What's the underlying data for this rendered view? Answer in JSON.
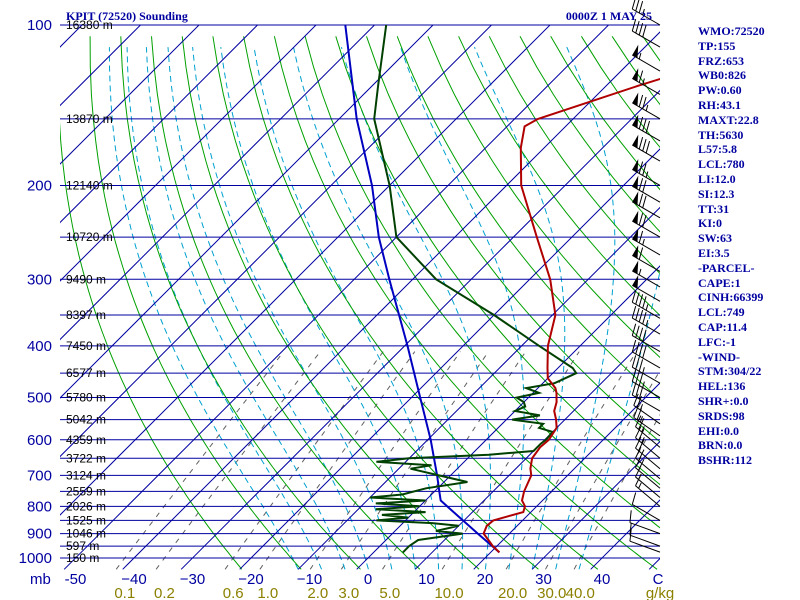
{
  "header": {
    "station": "KPIT (72520) Sounding",
    "time": "0000Z  1 MAY 25"
  },
  "indices": [
    "WMO:72520",
    "TP:155",
    "FRZ:653",
    "WB0:826",
    "PW:0.60",
    "RH:43.1",
    "MAXT:22.8",
    "TH:5630",
    "L57:5.8",
    "LCL:780",
    "LI:12.0",
    "SI:12.3",
    "TT:31",
    "KI:0",
    "SW:63",
    "EI:3.5",
    "-PARCEL-",
    "CAPE:1",
    "CINH:66399",
    "LCL:749",
    "CAP:11.4",
    "LFC:-1",
    "-WIND-",
    "STM:304/22",
    "HEL:136",
    "SHR+:0.0",
    "SRDS:98",
    "EHI:0.0",
    "BRN:0.0",
    "BSHR:112"
  ],
  "colors": {
    "isobar": "#0000a0",
    "isotherm": "#0000a0",
    "dry_adiabat": "#00a000",
    "moist_adiabat": "#00a0d0",
    "mixing_ratio": "#606060",
    "temperature": "#b00000",
    "dewpoint": "#004000",
    "parcel": "#0000c0",
    "wind_barb": "#000000"
  },
  "chart_data": {
    "type": "skew-t",
    "title": "KPIT (72520) Sounding",
    "pressure_unit_label": "mb",
    "mixing_ratio_unit_label": "g/kg",
    "pressure_ticks": [
      100,
      200,
      300,
      400,
      500,
      600,
      700,
      800,
      900,
      1000
    ],
    "temperature_ticks": [
      -50,
      -40,
      -30,
      -20,
      -10,
      0,
      10,
      20,
      30,
      40
    ],
    "temperature_tick_labels": [
      "-50",
      "−40",
      "−30",
      "−20",
      "−10",
      "0",
      "10",
      "20",
      "30",
      "40"
    ],
    "axis_end_label": "C",
    "mixing_ratio_labels": [
      "0.1",
      "0.2",
      "0.6",
      "1.0",
      "2.0",
      "3.0",
      "5.0",
      "10.0",
      "20.0",
      "30.0",
      "40.0"
    ],
    "mixing_ratio_values": [
      0.1,
      0.2,
      0.6,
      1.0,
      2.0,
      3.0,
      5.0,
      10.0,
      20.0,
      30.0,
      40.0
    ],
    "height_labels": [
      {
        "p": 100,
        "label": "16380 m"
      },
      {
        "p": 150,
        "label": "13870 m"
      },
      {
        "p": 200,
        "label": "12140 m"
      },
      {
        "p": 250,
        "label": "10720 m"
      },
      {
        "p": 300,
        "label": "9490 m"
      },
      {
        "p": 350,
        "label": "8397 m"
      },
      {
        "p": 400,
        "label": "7450 m"
      },
      {
        "p": 450,
        "label": "6577 m"
      },
      {
        "p": 500,
        "label": "5780 m"
      },
      {
        "p": 550,
        "label": "5042 m"
      },
      {
        "p": 600,
        "label": "4359 m"
      },
      {
        "p": 650,
        "label": "3722 m"
      },
      {
        "p": 700,
        "label": "3124 m"
      },
      {
        "p": 750,
        "label": "2559 m"
      },
      {
        "p": 800,
        "label": "2026 m"
      },
      {
        "p": 850,
        "label": "1525 m"
      },
      {
        "p": 900,
        "label": "1046 m"
      },
      {
        "p": 950,
        "label": "597 m"
      },
      {
        "p": 1000,
        "label": "150 m"
      }
    ],
    "temperature_profile": [
      [
        976,
        21.5
      ],
      [
        950,
        19.3
      ],
      [
        925,
        17.5
      ],
      [
        900,
        15.6
      ],
      [
        870,
        14.8
      ],
      [
        850,
        15.0
      ],
      [
        835,
        16.8
      ],
      [
        820,
        18.7
      ],
      [
        800,
        18.0
      ],
      [
        780,
        16.5
      ],
      [
        750,
        15.3
      ],
      [
        700,
        13.8
      ],
      [
        680,
        12.5
      ],
      [
        650,
        11.0
      ],
      [
        620,
        10.5
      ],
      [
        600,
        10.7
      ],
      [
        570,
        10.0
      ],
      [
        550,
        8.5
      ],
      [
        530,
        6.7
      ],
      [
        510,
        5.6
      ],
      [
        500,
        4.8
      ],
      [
        490,
        4.0
      ],
      [
        480,
        3.0
      ],
      [
        460,
        0.0
      ],
      [
        440,
        -1.8
      ],
      [
        400,
        -5.5
      ],
      [
        350,
        -9.5
      ],
      [
        300,
        -16.5
      ],
      [
        250,
        -26.0
      ],
      [
        200,
        -37.5
      ],
      [
        170,
        -44.0
      ],
      [
        155,
        -47.0
      ],
      [
        150,
        -46.0
      ],
      [
        130,
        -34.5
      ],
      [
        118,
        -26.0
      ],
      [
        100,
        -12.0
      ]
    ],
    "dewpoint_profile": [
      [
        976,
        5.0
      ],
      [
        950,
        5.0
      ],
      [
        925,
        5.5
      ],
      [
        900,
        12.0
      ],
      [
        890,
        7.0
      ],
      [
        870,
        10.0
      ],
      [
        860,
        5.0
      ],
      [
        850,
        -5.0
      ],
      [
        840,
        0.0
      ],
      [
        830,
        -5.0
      ],
      [
        820,
        2.0
      ],
      [
        810,
        -7.0
      ],
      [
        800,
        0.0
      ],
      [
        790,
        -8.0
      ],
      [
        780,
        0.0
      ],
      [
        770,
        -10.0
      ],
      [
        760,
        -5.0
      ],
      [
        740,
        -2.0
      ],
      [
        720,
        4.0
      ],
      [
        700,
        -2.0
      ],
      [
        680,
        -8.0
      ],
      [
        670,
        -5.0
      ],
      [
        660,
        -15.0
      ],
      [
        650,
        -10.0
      ],
      [
        640,
        3.0
      ],
      [
        630,
        10.0
      ],
      [
        610,
        10.0
      ],
      [
        600,
        10.2
      ],
      [
        580,
        10.0
      ],
      [
        570,
        7.0
      ],
      [
        560,
        7.0
      ],
      [
        550,
        1.0
      ],
      [
        540,
        5.0
      ],
      [
        530,
        0.0
      ],
      [
        520,
        1.0
      ],
      [
        510,
        0.0
      ],
      [
        500,
        -2.0
      ],
      [
        490,
        1.0
      ],
      [
        480,
        -2.0
      ],
      [
        470,
        2.0
      ],
      [
        460,
        3.0
      ],
      [
        450,
        4.0
      ],
      [
        440,
        2.5
      ],
      [
        400,
        -7.0
      ],
      [
        350,
        -20.0
      ],
      [
        300,
        -36.0
      ],
      [
        250,
        -50.0
      ],
      [
        200,
        -60.0
      ],
      [
        150,
        -74.0
      ],
      [
        130,
        -79.0
      ],
      [
        100,
        -88.0
      ]
    ],
    "parcel_profile": [
      [
        976,
        21.5
      ],
      [
        900,
        14.6
      ],
      [
        850,
        9.8
      ],
      [
        800,
        4.7
      ],
      [
        780,
        2.6
      ],
      [
        750,
        0.8
      ],
      [
        700,
        -2.3
      ],
      [
        600,
        -9.5
      ],
      [
        500,
        -18.5
      ],
      [
        400,
        -29.5
      ],
      [
        300,
        -44.0
      ],
      [
        250,
        -53.0
      ],
      [
        200,
        -63.0
      ],
      [
        150,
        -77.0
      ],
      [
        100,
        -95.0
      ]
    ],
    "wind_barbs": [
      {
        "p": 100,
        "dir": 300,
        "kt": 35
      },
      {
        "p": 110,
        "dir": 300,
        "kt": 40
      },
      {
        "p": 122,
        "dir": 300,
        "kt": 55
      },
      {
        "p": 135,
        "dir": 300,
        "kt": 65
      },
      {
        "p": 150,
        "dir": 300,
        "kt": 75
      },
      {
        "p": 165,
        "dir": 300,
        "kt": 80
      },
      {
        "p": 180,
        "dir": 300,
        "kt": 80
      },
      {
        "p": 200,
        "dir": 300,
        "kt": 75
      },
      {
        "p": 215,
        "dir": 300,
        "kt": 70
      },
      {
        "p": 230,
        "dir": 300,
        "kt": 70
      },
      {
        "p": 250,
        "dir": 300,
        "kt": 70
      },
      {
        "p": 270,
        "dir": 300,
        "kt": 65
      },
      {
        "p": 290,
        "dir": 300,
        "kt": 60
      },
      {
        "p": 310,
        "dir": 300,
        "kt": 55
      },
      {
        "p": 330,
        "dir": 300,
        "kt": 50
      },
      {
        "p": 355,
        "dir": 300,
        "kt": 45
      },
      {
        "p": 380,
        "dir": 300,
        "kt": 45
      },
      {
        "p": 410,
        "dir": 300,
        "kt": 40
      },
      {
        "p": 440,
        "dir": 300,
        "kt": 40
      },
      {
        "p": 470,
        "dir": 300,
        "kt": 35
      },
      {
        "p": 500,
        "dir": 300,
        "kt": 35
      },
      {
        "p": 530,
        "dir": 300,
        "kt": 30
      },
      {
        "p": 560,
        "dir": 305,
        "kt": 25
      },
      {
        "p": 590,
        "dir": 305,
        "kt": 25
      },
      {
        "p": 620,
        "dir": 310,
        "kt": 25
      },
      {
        "p": 650,
        "dir": 310,
        "kt": 25
      },
      {
        "p": 680,
        "dir": 310,
        "kt": 20
      },
      {
        "p": 710,
        "dir": 310,
        "kt": 20
      },
      {
        "p": 740,
        "dir": 310,
        "kt": 20
      },
      {
        "p": 770,
        "dir": 310,
        "kt": 15
      },
      {
        "p": 800,
        "dir": 310,
        "kt": 15
      },
      {
        "p": 850,
        "dir": 300,
        "kt": 10
      },
      {
        "p": 900,
        "dir": 290,
        "kt": 10
      },
      {
        "p": 950,
        "dir": 290,
        "kt": 10
      },
      {
        "p": 975,
        "dir": 290,
        "kt": 10
      }
    ]
  }
}
